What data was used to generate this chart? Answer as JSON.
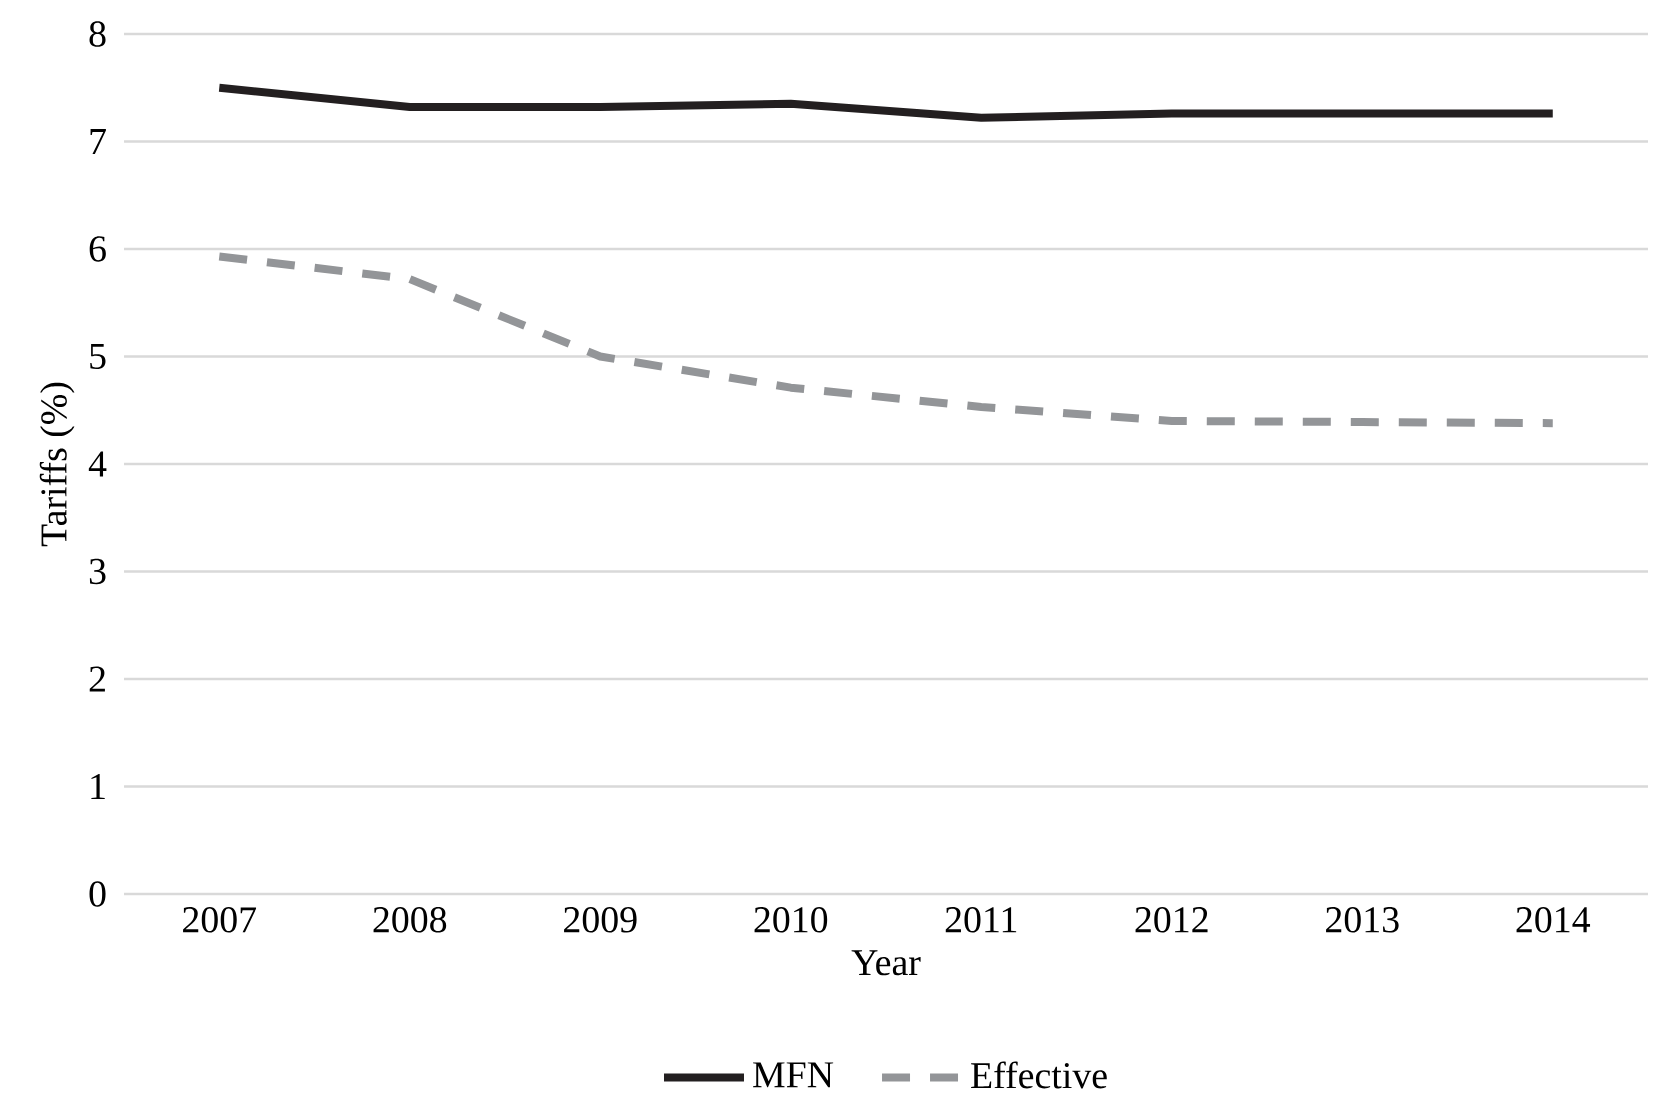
{
  "chart_data": {
    "type": "line",
    "xlabel": "Year",
    "ylabel": "Tariffs (%)",
    "categories": [
      "2007",
      "2008",
      "2009",
      "2010",
      "2011",
      "2012",
      "2013",
      "2014"
    ],
    "series": [
      {
        "name": "MFN",
        "color": "#231f20",
        "line_style": "solid",
        "values": [
          7.5,
          7.32,
          7.32,
          7.35,
          7.22,
          7.26,
          7.26,
          7.26
        ]
      },
      {
        "name": "Effective",
        "color": "#939598",
        "line_style": "dashed",
        "values": [
          5.93,
          5.72,
          5.0,
          4.71,
          4.53,
          4.4,
          4.39,
          4.38
        ]
      }
    ],
    "ylim": [
      0,
      8
    ],
    "yticks": [
      0,
      1,
      2,
      3,
      4,
      5,
      6,
      7,
      8
    ],
    "grid": "y",
    "legend": "bottom",
    "marker": "none"
  }
}
